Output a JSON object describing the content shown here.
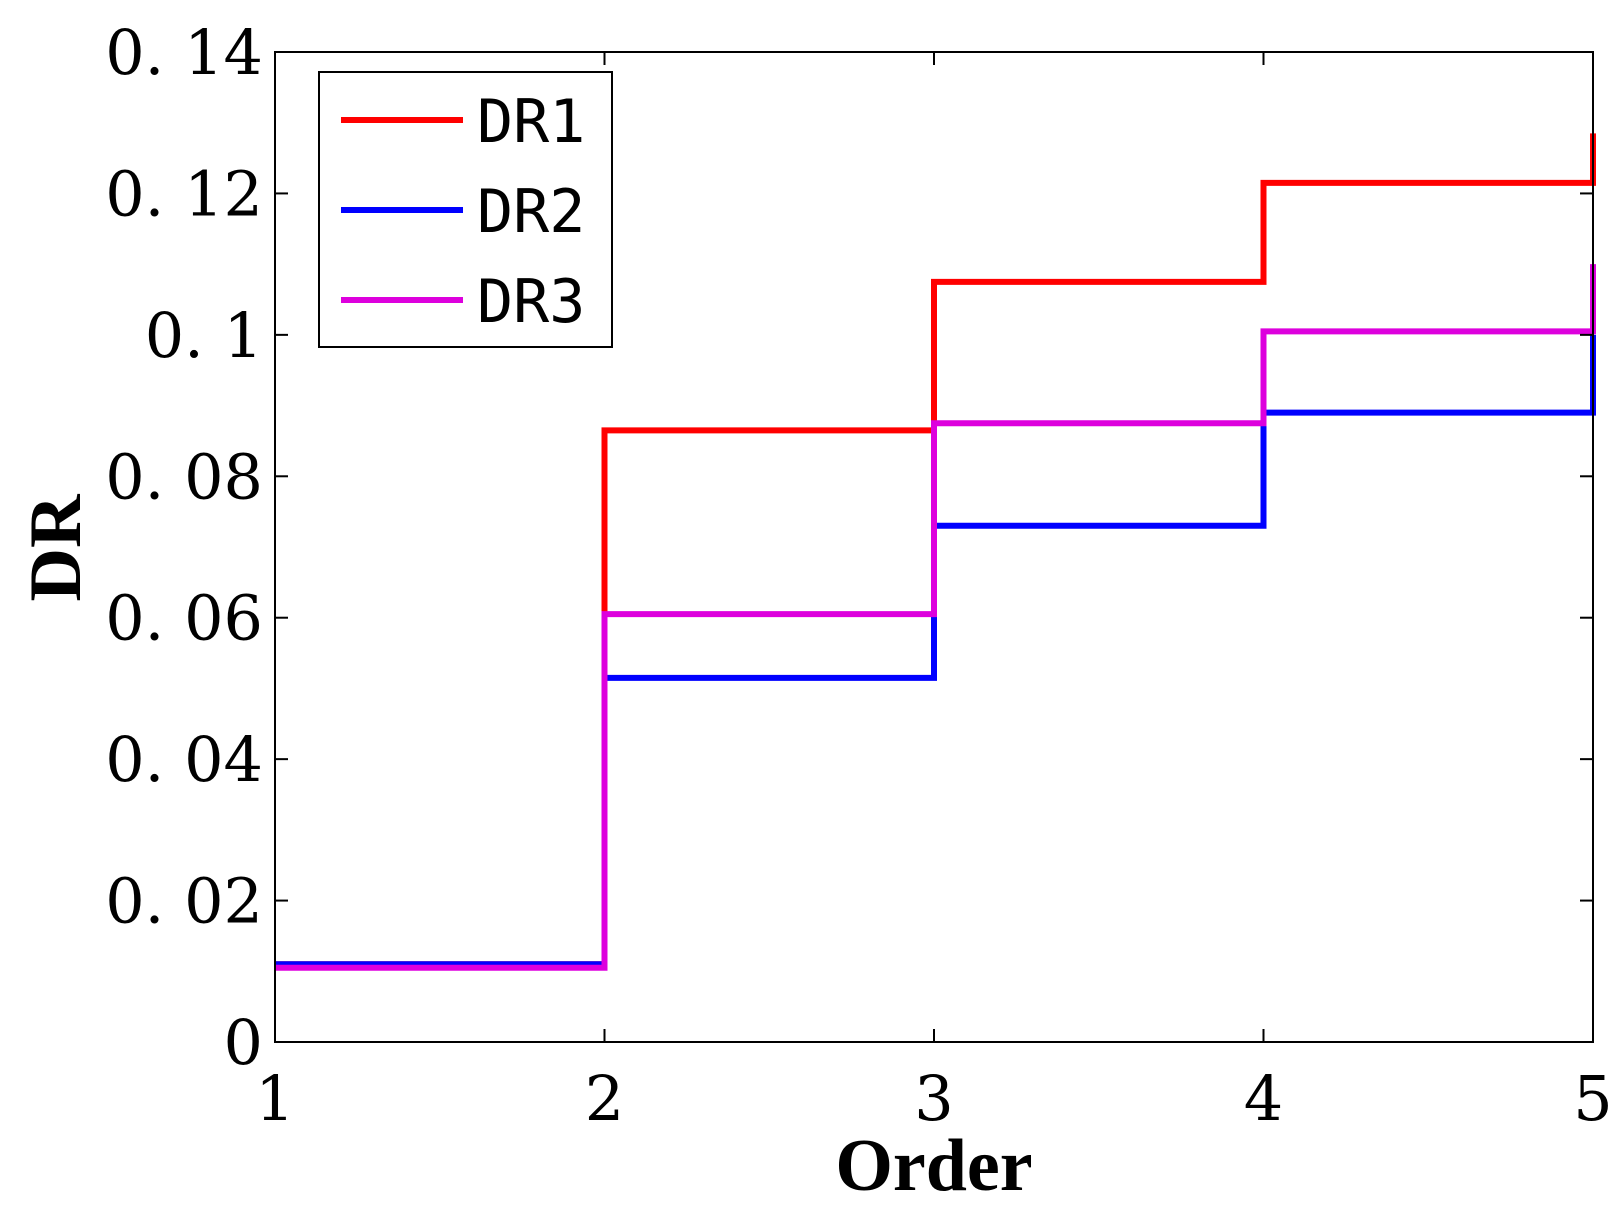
{
  "chart_data": {
    "type": "line",
    "step": "post",
    "xlabel": "Order",
    "ylabel": "DR",
    "xlim": [
      1,
      5
    ],
    "ylim": [
      0,
      0.14
    ],
    "xticks": [
      1,
      2,
      3,
      4,
      5
    ],
    "xtick_labels": [
      "1",
      "2",
      "3",
      "4",
      "5"
    ],
    "yticks": [
      0,
      0.02,
      0.04,
      0.06,
      0.08,
      0.1,
      0.12,
      0.14
    ],
    "ytick_labels": [
      "0",
      "0. 02",
      "0. 04",
      "0. 06",
      "0. 08",
      "0. 1",
      "0. 12",
      "0. 14"
    ],
    "grid": false,
    "legend_position": "top-left",
    "x": [
      1,
      2,
      3,
      4,
      5
    ],
    "series": [
      {
        "name": "DR1",
        "color": "#ff0000",
        "values": [
          0.011,
          0.0865,
          0.1075,
          0.1215,
          0.1285
        ]
      },
      {
        "name": "DR2",
        "color": "#0000ff",
        "values": [
          0.011,
          0.0515,
          0.073,
          0.089,
          0.1
        ]
      },
      {
        "name": "DR3",
        "color": "#dd00dd",
        "values": [
          0.0105,
          0.0605,
          0.0875,
          0.1005,
          0.11
        ]
      }
    ]
  }
}
